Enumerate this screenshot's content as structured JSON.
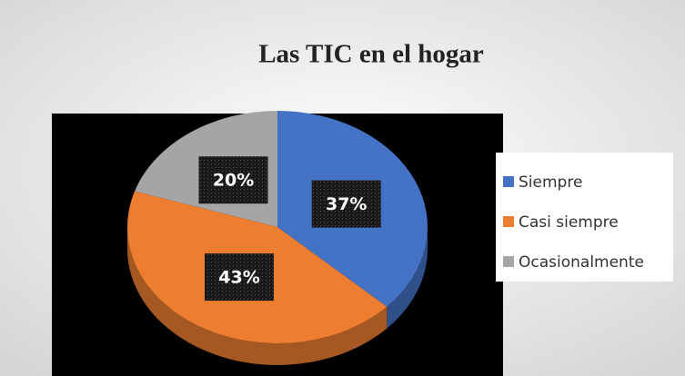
{
  "chart_data": {
    "type": "pie",
    "title": "Las TIC en el hogar",
    "categories": [
      "Siempre",
      "Casi siempre",
      "Ocasionalmente"
    ],
    "values": [
      37,
      43,
      20
    ],
    "value_labels": [
      "37%",
      "43%",
      "20%"
    ],
    "colors": [
      "#4472c4",
      "#ed7d31",
      "#a5a5a5"
    ],
    "legend": "right"
  }
}
